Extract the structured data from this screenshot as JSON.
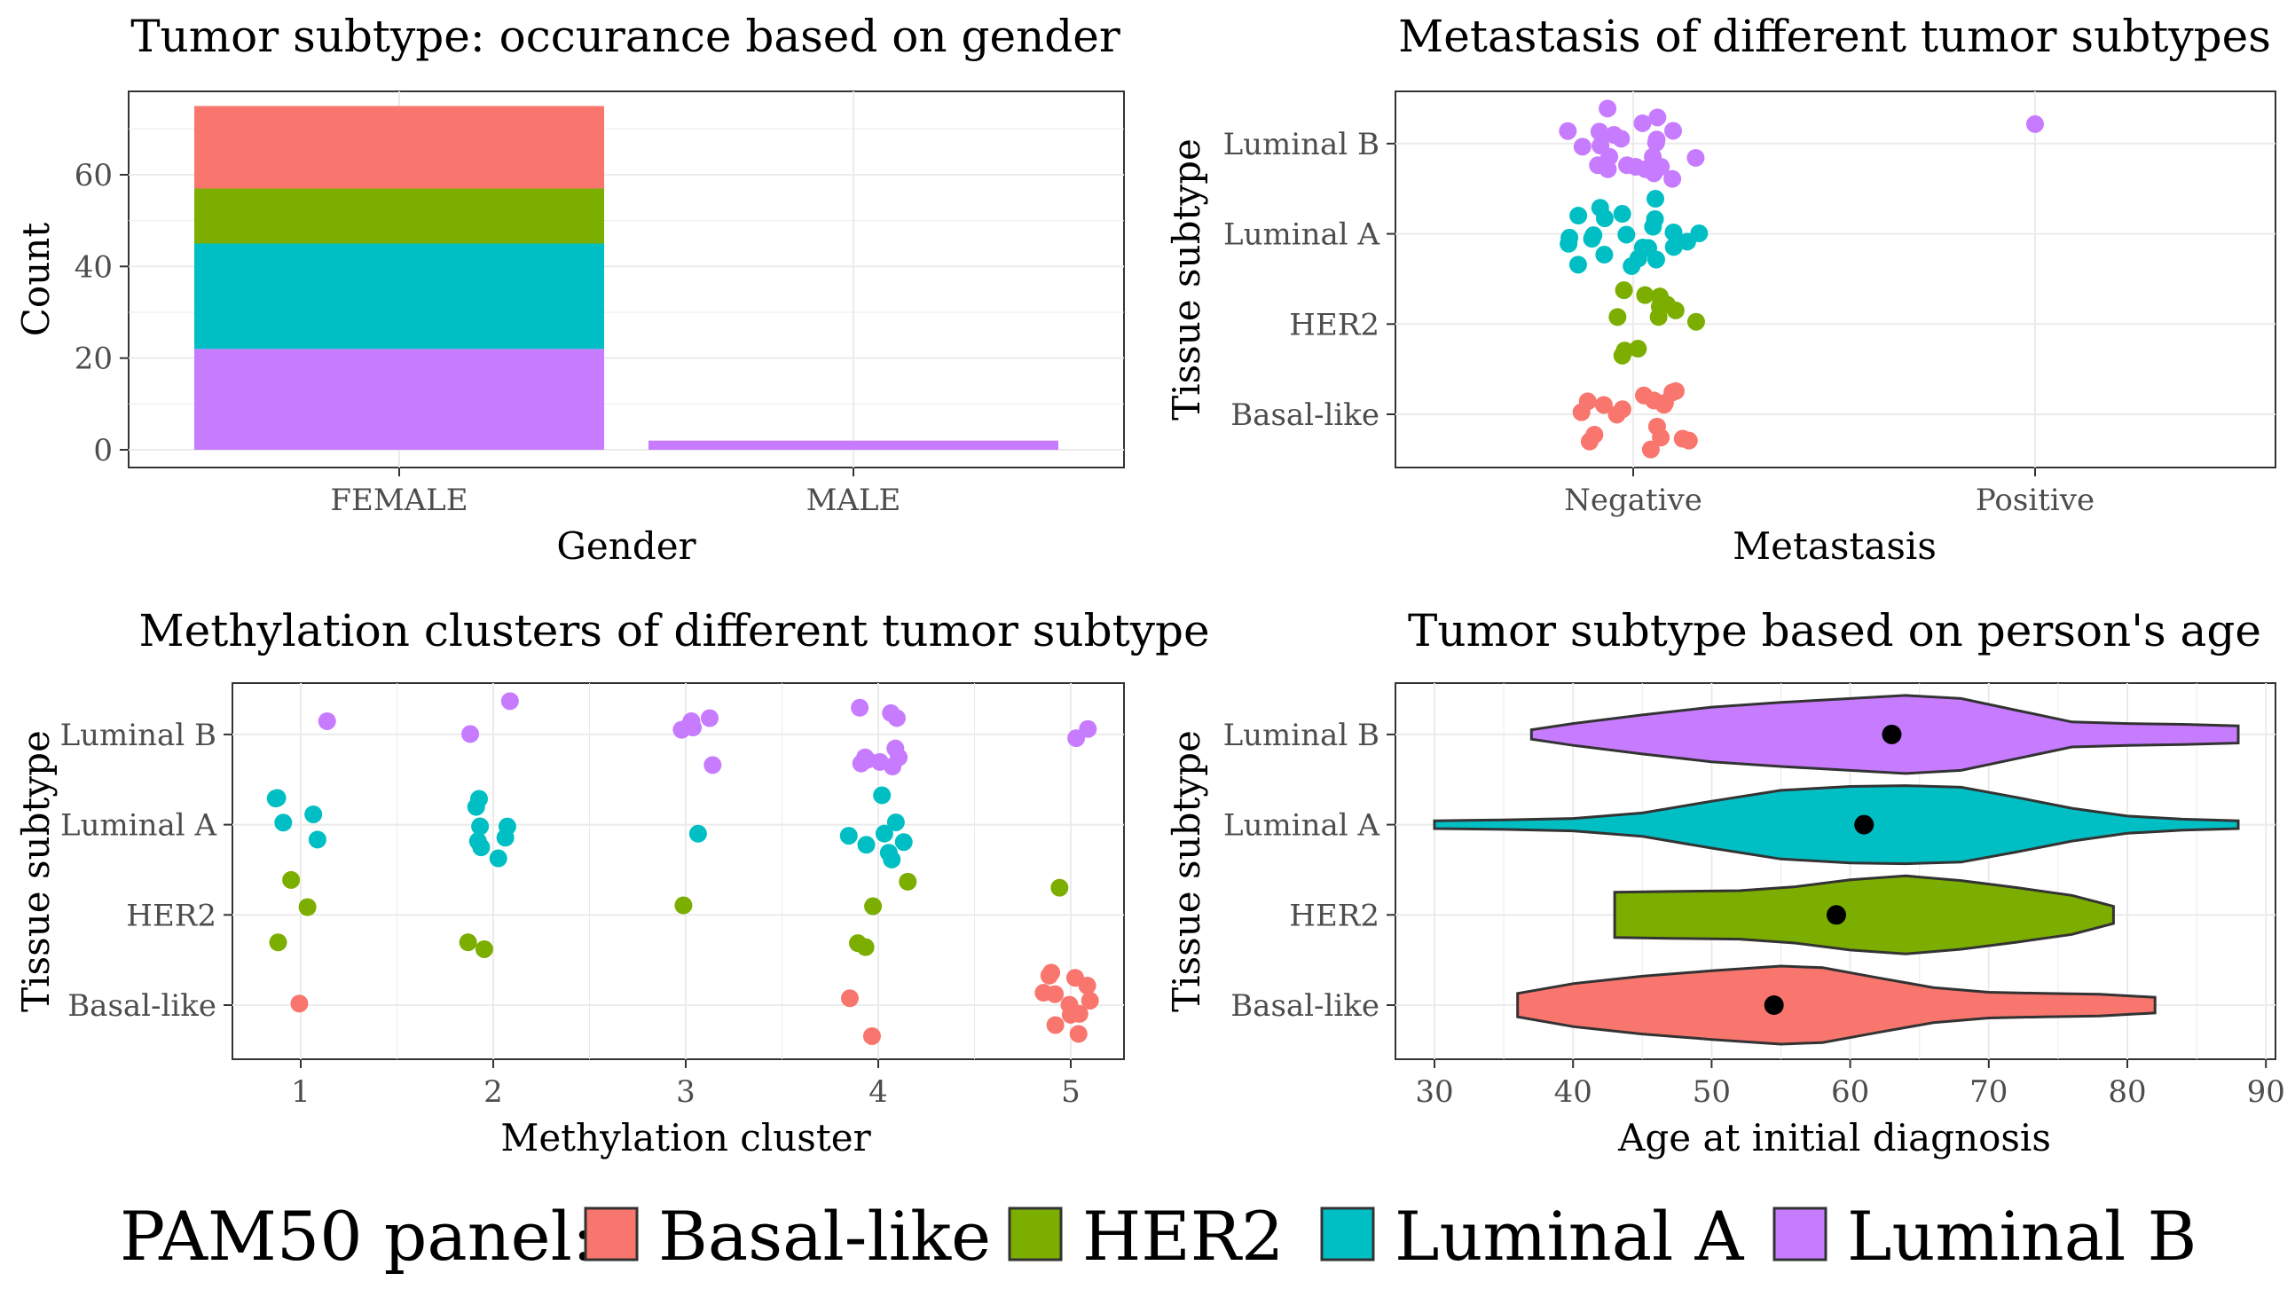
{
  "palette": {
    "Basal-like": "#F8766D",
    "HER2": "#7CAE00",
    "Luminal A": "#00BFC4",
    "Luminal B": "#C77CFF"
  },
  "legend": {
    "title": "PAM50 panel:",
    "items": [
      "Basal-like",
      "HER2",
      "Luminal A",
      "Luminal B"
    ]
  },
  "chart_data": [
    {
      "type": "bar",
      "stacked": true,
      "title": "Tumor subtype: occurance based on gender",
      "xlabel": "Gender",
      "ylabel": "Count",
      "categories": [
        "FEMALE",
        "MALE"
      ],
      "y_ticks": [
        "0",
        "20",
        "40",
        "60"
      ],
      "ylim": [
        0,
        78
      ],
      "series": [
        {
          "name": "Luminal B",
          "values": [
            22,
            2
          ]
        },
        {
          "name": "Luminal A",
          "values": [
            23,
            0
          ]
        },
        {
          "name": "HER2",
          "values": [
            12,
            0
          ]
        },
        {
          "name": "Basal-like",
          "values": [
            18,
            0
          ]
        }
      ]
    },
    {
      "type": "scatter",
      "jitter": true,
      "title": "Metastasis of different tumor subtypes",
      "xlabel": "Metastasis",
      "ylabel": "Tissue subtype",
      "x_categories": [
        "Negative",
        "Positive"
      ],
      "y_categories": [
        "Basal-like",
        "HER2",
        "Luminal A",
        "Luminal B"
      ],
      "points": [
        {
          "x": "Negative",
          "count": 18,
          "subtype": "Basal-like"
        },
        {
          "x": "Negative",
          "count": 12,
          "subtype": "HER2"
        },
        {
          "x": "Negative",
          "count": 23,
          "subtype": "Luminal A"
        },
        {
          "x": "Negative",
          "count": 23,
          "subtype": "Luminal B"
        },
        {
          "x": "Positive",
          "count": 1,
          "subtype": "Luminal B"
        }
      ]
    },
    {
      "type": "scatter",
      "jitter": true,
      "title": "Methylation clusters of different tumor subtype",
      "xlabel": "Methylation cluster",
      "ylabel": "Tissue subtype",
      "x_ticks": [
        "1",
        "2",
        "3",
        "4",
        "5"
      ],
      "y_categories": [
        "Basal-like",
        "HER2",
        "Luminal A",
        "Luminal B"
      ],
      "points": [
        {
          "cluster": 1,
          "subtype": "Basal-like",
          "count": 1
        },
        {
          "cluster": 1,
          "subtype": "HER2",
          "count": 3
        },
        {
          "cluster": 1,
          "subtype": "Luminal A",
          "count": 5
        },
        {
          "cluster": 1,
          "subtype": "Luminal B",
          "count": 1
        },
        {
          "cluster": 2,
          "subtype": "HER2",
          "count": 2
        },
        {
          "cluster": 2,
          "subtype": "Luminal A",
          "count": 8
        },
        {
          "cluster": 2,
          "subtype": "Luminal B",
          "count": 2
        },
        {
          "cluster": 3,
          "subtype": "HER2",
          "count": 1
        },
        {
          "cluster": 3,
          "subtype": "Luminal A",
          "count": 1
        },
        {
          "cluster": 3,
          "subtype": "Luminal B",
          "count": 6
        },
        {
          "cluster": 4,
          "subtype": "Basal-like",
          "count": 2
        },
        {
          "cluster": 4,
          "subtype": "HER2",
          "count": 4
        },
        {
          "cluster": 4,
          "subtype": "Luminal A",
          "count": 8
        },
        {
          "cluster": 4,
          "subtype": "Luminal B",
          "count": 10
        },
        {
          "cluster": 5,
          "subtype": "Basal-like",
          "count": 12
        },
        {
          "cluster": 5,
          "subtype": "HER2",
          "count": 1
        },
        {
          "cluster": 5,
          "subtype": "Luminal B",
          "count": 2
        }
      ]
    },
    {
      "type": "violin",
      "title": "Tumor subtype based on person's age",
      "xlabel": "Age at initial diagnosis",
      "ylabel": "Tissue subtype",
      "x_ticks": [
        30,
        40,
        50,
        60,
        70,
        80,
        90
      ],
      "xlim": [
        29,
        90
      ],
      "y_categories": [
        "Basal-like",
        "HER2",
        "Luminal A",
        "Luminal B"
      ],
      "violins": [
        {
          "subtype": "Basal-like",
          "min": 36,
          "max": 82,
          "mean": 54.5
        },
        {
          "subtype": "HER2",
          "min": 43,
          "max": 79,
          "mean": 59
        },
        {
          "subtype": "Luminal A",
          "min": 30,
          "max": 88,
          "mean": 61
        },
        {
          "subtype": "Luminal B",
          "min": 37,
          "max": 88,
          "mean": 63
        }
      ]
    }
  ]
}
